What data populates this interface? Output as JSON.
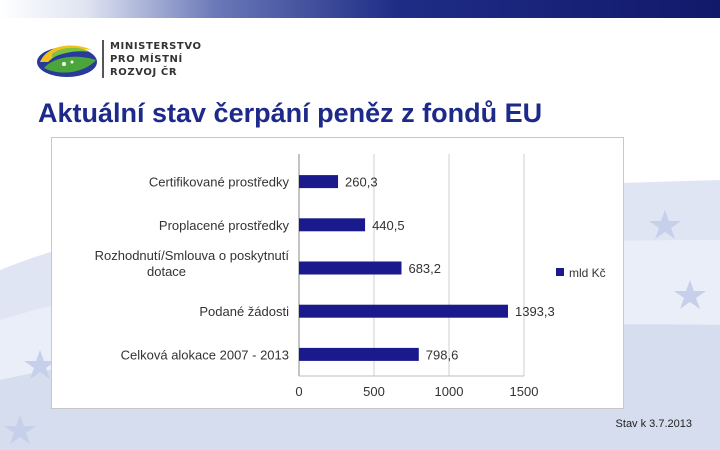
{
  "header": {
    "ministry_lines": [
      "MINISTERSTVO",
      "PRO MÍSTNÍ",
      "ROZVOJ ČR"
    ],
    "title": "Aktuální stav čerpání peněz z fondů EU"
  },
  "footer": {
    "note": "Stav k 3.7.2013"
  },
  "colors": {
    "bar": "#1a1a8c",
    "title": "#1d2a8a"
  },
  "chart_data": {
    "type": "bar",
    "orientation": "horizontal",
    "categories": [
      "Certifikované prostředky",
      "Proplacené prostředky",
      "Rozhodnutí/Smlouva o poskytnutí dotace",
      "Podané žádosti",
      "Celková alokace 2007 - 2013"
    ],
    "category_label_lines": [
      [
        "Certifikované prostředky"
      ],
      [
        "Proplacené prostředky"
      ],
      [
        "Rozhodnutí/Smlouva o poskytnutí",
        "dotace"
      ],
      [
        "Podané žádosti"
      ],
      [
        "Celková alokace 2007 - 2013"
      ]
    ],
    "series": [
      {
        "name": "mld Kč",
        "values": [
          260.3,
          440.5,
          683.2,
          1393.3,
          798.6
        ],
        "labels": [
          "260,3",
          "440,5",
          "683,2",
          "1393,3",
          "798,6"
        ]
      }
    ],
    "xlim": [
      0,
      1500
    ],
    "xticks": [
      0,
      500,
      1000,
      1500
    ],
    "xtick_labels": [
      "0",
      "500",
      "1000",
      "1500"
    ],
    "grid": true,
    "legend_position": "right"
  }
}
